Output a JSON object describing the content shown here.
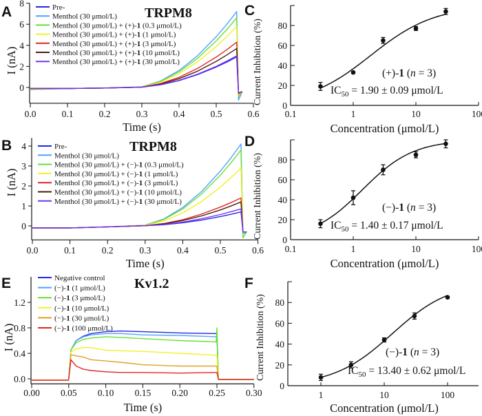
{
  "chart_data": [
    {
      "panel": "A",
      "type": "line",
      "title": "TRPM8",
      "xlabel": "Time (s)",
      "ylabel": "I (nA)",
      "xlim": [
        0,
        0.6
      ],
      "ylim": [
        -1.5,
        8
      ],
      "xticks": [
        "0.0",
        "0.1",
        "0.2",
        "0.3",
        "0.4",
        "0.5",
        "0.6"
      ],
      "xtick_values": [
        0,
        0.1,
        0.2,
        0.3,
        0.4,
        0.5,
        0.6
      ],
      "yticks": [
        "0",
        "2",
        "4",
        "6",
        "8"
      ],
      "ytick_values": [
        0,
        2,
        4,
        6,
        8
      ],
      "legend": "top-left",
      "x": [
        0,
        0.1,
        0.2,
        0.3,
        0.35,
        0.4,
        0.45,
        0.5,
        0.53,
        0.555,
        0.56,
        0.57
      ],
      "series": [
        {
          "name": "Pre-",
          "color": "#2424e6",
          "values": [
            -0.1,
            -0.1,
            -0.05,
            0.03,
            0.25,
            0.65,
            1.22,
            1.94,
            2.44,
            2.9,
            -0.6,
            -0.4
          ]
        },
        {
          "name": "Menthol (30 μmol/L)",
          "color": "#4da3ff",
          "values": [
            -0.15,
            -0.1,
            -0.05,
            0.06,
            0.61,
            1.61,
            3.02,
            4.82,
            6.06,
            7.2,
            -1.2,
            -0.4
          ]
        },
        {
          "name": "Menthol (30 μmol/L) + (+)-1 (0.3 μmol/L)",
          "color": "#66e033",
          "values": [
            -0.2,
            -0.1,
            -0.05,
            0.06,
            0.56,
            1.48,
            2.77,
            4.42,
            5.56,
            6.6,
            -0.9,
            -0.4
          ]
        },
        {
          "name": "Menthol (30 μmol/L) + (+)-1 (1 μmol/L)",
          "color": "#f2f026",
          "values": [
            -0.15,
            -0.1,
            -0.05,
            0.05,
            0.49,
            1.3,
            2.44,
            3.88,
            4.88,
            5.8,
            -0.7,
            -0.4
          ]
        },
        {
          "name": "Menthol (30 μmol/L) + (+)-1 (3 μmol/L)",
          "color": "#e02424",
          "values": [
            -0.1,
            -0.1,
            -0.05,
            0.04,
            0.37,
            0.96,
            1.81,
            2.88,
            3.62,
            4.3,
            -0.6,
            -0.4
          ]
        },
        {
          "name": "Menthol (30 μmol/L) + (+)-1 (10 μmol/L)",
          "color": "#4a1c12",
          "values": [
            -0.1,
            -0.1,
            -0.05,
            0.03,
            0.31,
            0.83,
            1.55,
            2.48,
            3.12,
            3.7,
            -0.5,
            -0.4
          ]
        },
        {
          "name": "Menthol (30 μmol/L) + (+)-1 (30 μmol/L)",
          "color": "#7333f0",
          "values": [
            -0.1,
            -0.1,
            -0.05,
            0.03,
            0.26,
            0.67,
            1.26,
            2.0,
            2.53,
            3.0,
            -0.5,
            -0.4
          ]
        }
      ]
    },
    {
      "panel": "B",
      "type": "line",
      "title": "TRPM8",
      "xlabel": "Time (s)",
      "ylabel": "I (nA)",
      "xlim": [
        0,
        0.6
      ],
      "ylim": [
        -0.7,
        4.4
      ],
      "xticks": [
        "0.0",
        "0.1",
        "0.2",
        "0.3",
        "0.4",
        "0.5",
        "0.6"
      ],
      "xtick_values": [
        0,
        0.1,
        0.2,
        0.3,
        0.4,
        0.5,
        0.6
      ],
      "yticks": [
        "0",
        "1",
        "2",
        "3",
        "4"
      ],
      "ytick_values": [
        0,
        1,
        2,
        3,
        4
      ],
      "legend": "top-left",
      "x": [
        0,
        0.1,
        0.2,
        0.3,
        0.35,
        0.4,
        0.45,
        0.5,
        0.53,
        0.555,
        0.56,
        0.57
      ],
      "series": [
        {
          "name": "Pre-",
          "color": "#2424e6",
          "values": [
            -0.1,
            -0.1,
            -0.05,
            0.01,
            0.06,
            0.16,
            0.29,
            0.47,
            0.59,
            0.7,
            -0.3,
            -0.3
          ]
        },
        {
          "name": "Menthol (30 μmol/L)",
          "color": "#4da3ff",
          "values": [
            -0.1,
            -0.1,
            -0.05,
            0.04,
            0.35,
            0.92,
            1.72,
            2.74,
            3.45,
            4.1,
            -0.4,
            -0.3
          ]
        },
        {
          "name": "Menthol (30 μmol/L) + (−)-1 (0.3 μmol/L)",
          "color": "#66e033",
          "values": [
            -0.1,
            -0.1,
            -0.05,
            0.03,
            0.32,
            0.85,
            1.6,
            2.54,
            3.2,
            3.8,
            -0.6,
            -0.3
          ]
        },
        {
          "name": "Menthol (30 μmol/L) + (−)-1 (1 μmol/L)",
          "color": "#f2f026",
          "values": [
            -0.1,
            -0.1,
            -0.05,
            0.03,
            0.25,
            0.65,
            1.22,
            1.94,
            2.44,
            2.9,
            -0.3,
            -0.3
          ]
        },
        {
          "name": "Menthol (30 μmol/L) + (−)-1 (3 μmol/L)",
          "color": "#e02424",
          "values": [
            -0.1,
            -0.1,
            -0.05,
            0.01,
            0.12,
            0.31,
            0.59,
            0.94,
            1.18,
            1.4,
            -0.3,
            -0.3
          ]
        },
        {
          "name": "Menthol (30 μmol/L) + (−)-1 (10 μmol/L)",
          "color": "#4a1c12",
          "values": [
            -0.1,
            -0.1,
            -0.05,
            0.01,
            0.1,
            0.27,
            0.5,
            0.8,
            1.01,
            1.2,
            -0.3,
            -0.3
          ]
        },
        {
          "name": "Menthol (30 μmol/L) + (−)-1 (30 μmol/L)",
          "color": "#7333f0",
          "values": [
            -0.1,
            -0.1,
            -0.05,
            0.01,
            0.07,
            0.19,
            0.36,
            0.57,
            0.72,
            0.85,
            -0.3,
            -0.3
          ]
        }
      ]
    },
    {
      "panel": "E",
      "type": "line",
      "title": "Kv1.2",
      "xlabel": "Time (s)",
      "ylabel": "I (nA)",
      "xlim": [
        0,
        0.3
      ],
      "ylim": [
        -0.08,
        1.6
      ],
      "xticks": [
        "0.00",
        "0.05",
        "0.10",
        "0.15",
        "0.20",
        "0.25",
        "0.30"
      ],
      "xtick_values": [
        0,
        0.05,
        0.1,
        0.15,
        0.2,
        0.25,
        0.3
      ],
      "yticks": [
        "0.0",
        "0.4",
        "0.8",
        "1.2"
      ],
      "ytick_values": [
        0,
        0.4,
        0.8,
        1.2
      ],
      "legend": "top-left",
      "x": [
        0,
        0.0499,
        0.05,
        0.053,
        0.06,
        0.07,
        0.08,
        0.1,
        0.12,
        0.15,
        0.2,
        0.249,
        0.25,
        0.252,
        0.3
      ],
      "series": [
        {
          "name": "Negative control",
          "color": "#2424e6",
          "values": [
            -0.02,
            -0.02,
            0,
            0.45,
            0.6,
            0.67,
            0.71,
            0.74,
            0.75,
            0.74,
            0.72,
            0.71,
            0.72,
            -0.01,
            -0.01
          ]
        },
        {
          "name": "(−)-1 (1 μmol/L)",
          "color": "#4da3ff",
          "values": [
            -0.02,
            -0.02,
            0,
            0.45,
            0.6,
            0.66,
            0.69,
            0.71,
            0.71,
            0.69,
            0.68,
            0.66,
            0.7,
            -0.01,
            -0.01
          ]
        },
        {
          "name": "(−)-1 (3 μmol/L)",
          "color": "#66e033",
          "values": [
            -0.02,
            -0.02,
            0,
            0.45,
            0.57,
            0.62,
            0.64,
            0.66,
            0.65,
            0.63,
            0.6,
            0.58,
            0.8,
            -0.01,
            -0.01
          ]
        },
        {
          "name": "(−)-1 (10 μmol/L)",
          "color": "#f2f026",
          "values": [
            -0.02,
            -0.02,
            0,
            0.42,
            0.47,
            0.49,
            0.49,
            0.45,
            0.44,
            0.43,
            0.4,
            0.37,
            0.38,
            -0.01,
            -0.01
          ]
        },
        {
          "name": "(−)-1 (30 μmol/L)",
          "color": "#e0a022",
          "values": [
            -0.02,
            -0.02,
            0,
            0.38,
            0.36,
            0.34,
            0.3,
            0.28,
            0.26,
            0.22,
            0.2,
            0.2,
            0.2,
            -0.01,
            -0.01
          ]
        },
        {
          "name": "(−)-1 (100 μmol/L)",
          "color": "#e02424",
          "values": [
            -0.02,
            -0.02,
            0,
            0.3,
            0.2,
            0.15,
            0.13,
            0.11,
            0.1,
            0.1,
            0.09,
            0.1,
            0.1,
            -0.01,
            -0.01
          ]
        }
      ]
    },
    {
      "panel": "C",
      "type": "scatter",
      "xscale": "log",
      "xlabel": "Concentration (μmol/L)",
      "ylabel": "Current Inhibition (%)",
      "xlim": [
        0.1,
        100
      ],
      "ylim": [
        0,
        100
      ],
      "xticks": [
        "0.1",
        "1",
        "10",
        "100"
      ],
      "xtick_values": [
        0.1,
        1,
        10,
        100
      ],
      "yticks": [
        "0",
        "20",
        "40",
        "60",
        "80"
      ],
      "ytick_values": [
        0,
        20,
        40,
        60,
        80
      ],
      "x": [
        0.3,
        1,
        3,
        10,
        30
      ],
      "values": [
        19,
        33,
        65,
        77,
        94
      ],
      "errors": [
        4,
        1,
        3,
        2,
        3
      ],
      "fit": "dose-response curve",
      "annotation": {
        "compound": "(+)-1",
        "n": "(n = 3)",
        "ic50_label": "IC",
        "ic50_sub": "50",
        "ic50_value": " = 1.90 ± 0.09 μmol/L",
        "ic50": 1.9
      }
    },
    {
      "panel": "D",
      "type": "scatter",
      "xscale": "log",
      "xlabel": "Concentration (μmol/L)",
      "ylabel": "Current Inhibition (%)",
      "xlim": [
        0.1,
        100
      ],
      "ylim": [
        0,
        100
      ],
      "xticks": [
        "0.1",
        "1",
        "10",
        "100"
      ],
      "xtick_values": [
        0.1,
        1,
        10,
        100
      ],
      "yticks": [
        "0",
        "20",
        "40",
        "60",
        "80"
      ],
      "ytick_values": [
        0,
        20,
        40,
        60,
        80
      ],
      "x": [
        0.3,
        1,
        3,
        10,
        30
      ],
      "values": [
        16,
        42,
        70,
        85,
        96
      ],
      "errors": [
        4,
        7,
        5,
        3,
        4
      ],
      "fit": "dose-response curve",
      "annotation": {
        "compound": "(−)-1",
        "n": "(n = 3)",
        "ic50_label": "IC",
        "ic50_sub": "50",
        "ic50_value": " = 1.40 ± 0.17 μmol/L",
        "ic50": 1.4
      }
    },
    {
      "panel": "F",
      "type": "scatter",
      "xscale": "log",
      "xlabel": "Concentration (μmol/L)",
      "ylabel": "Current Inhibition (%)",
      "xlim": [
        0.3,
        300
      ],
      "ylim": [
        0,
        100
      ],
      "xticks": [
        "1",
        "10",
        "100"
      ],
      "xtick_values": [
        1,
        10,
        100
      ],
      "yticks": [
        "0",
        "20",
        "40",
        "60",
        "80"
      ],
      "ytick_values": [
        0,
        20,
        40,
        60,
        80
      ],
      "x": [
        1,
        3,
        10,
        30,
        100
      ],
      "values": [
        8,
        20,
        44,
        67,
        85
      ],
      "errors": [
        3,
        3,
        2,
        3,
        1
      ],
      "fit": "dose-response curve",
      "annotation": {
        "compound": "(−)-1",
        "n": "(n = 3)",
        "ic50_label": "IC",
        "ic50_sub": "50",
        "ic50_value": " = 13.40 ± 0.62 μmol/L",
        "ic50": 13.4
      }
    }
  ]
}
